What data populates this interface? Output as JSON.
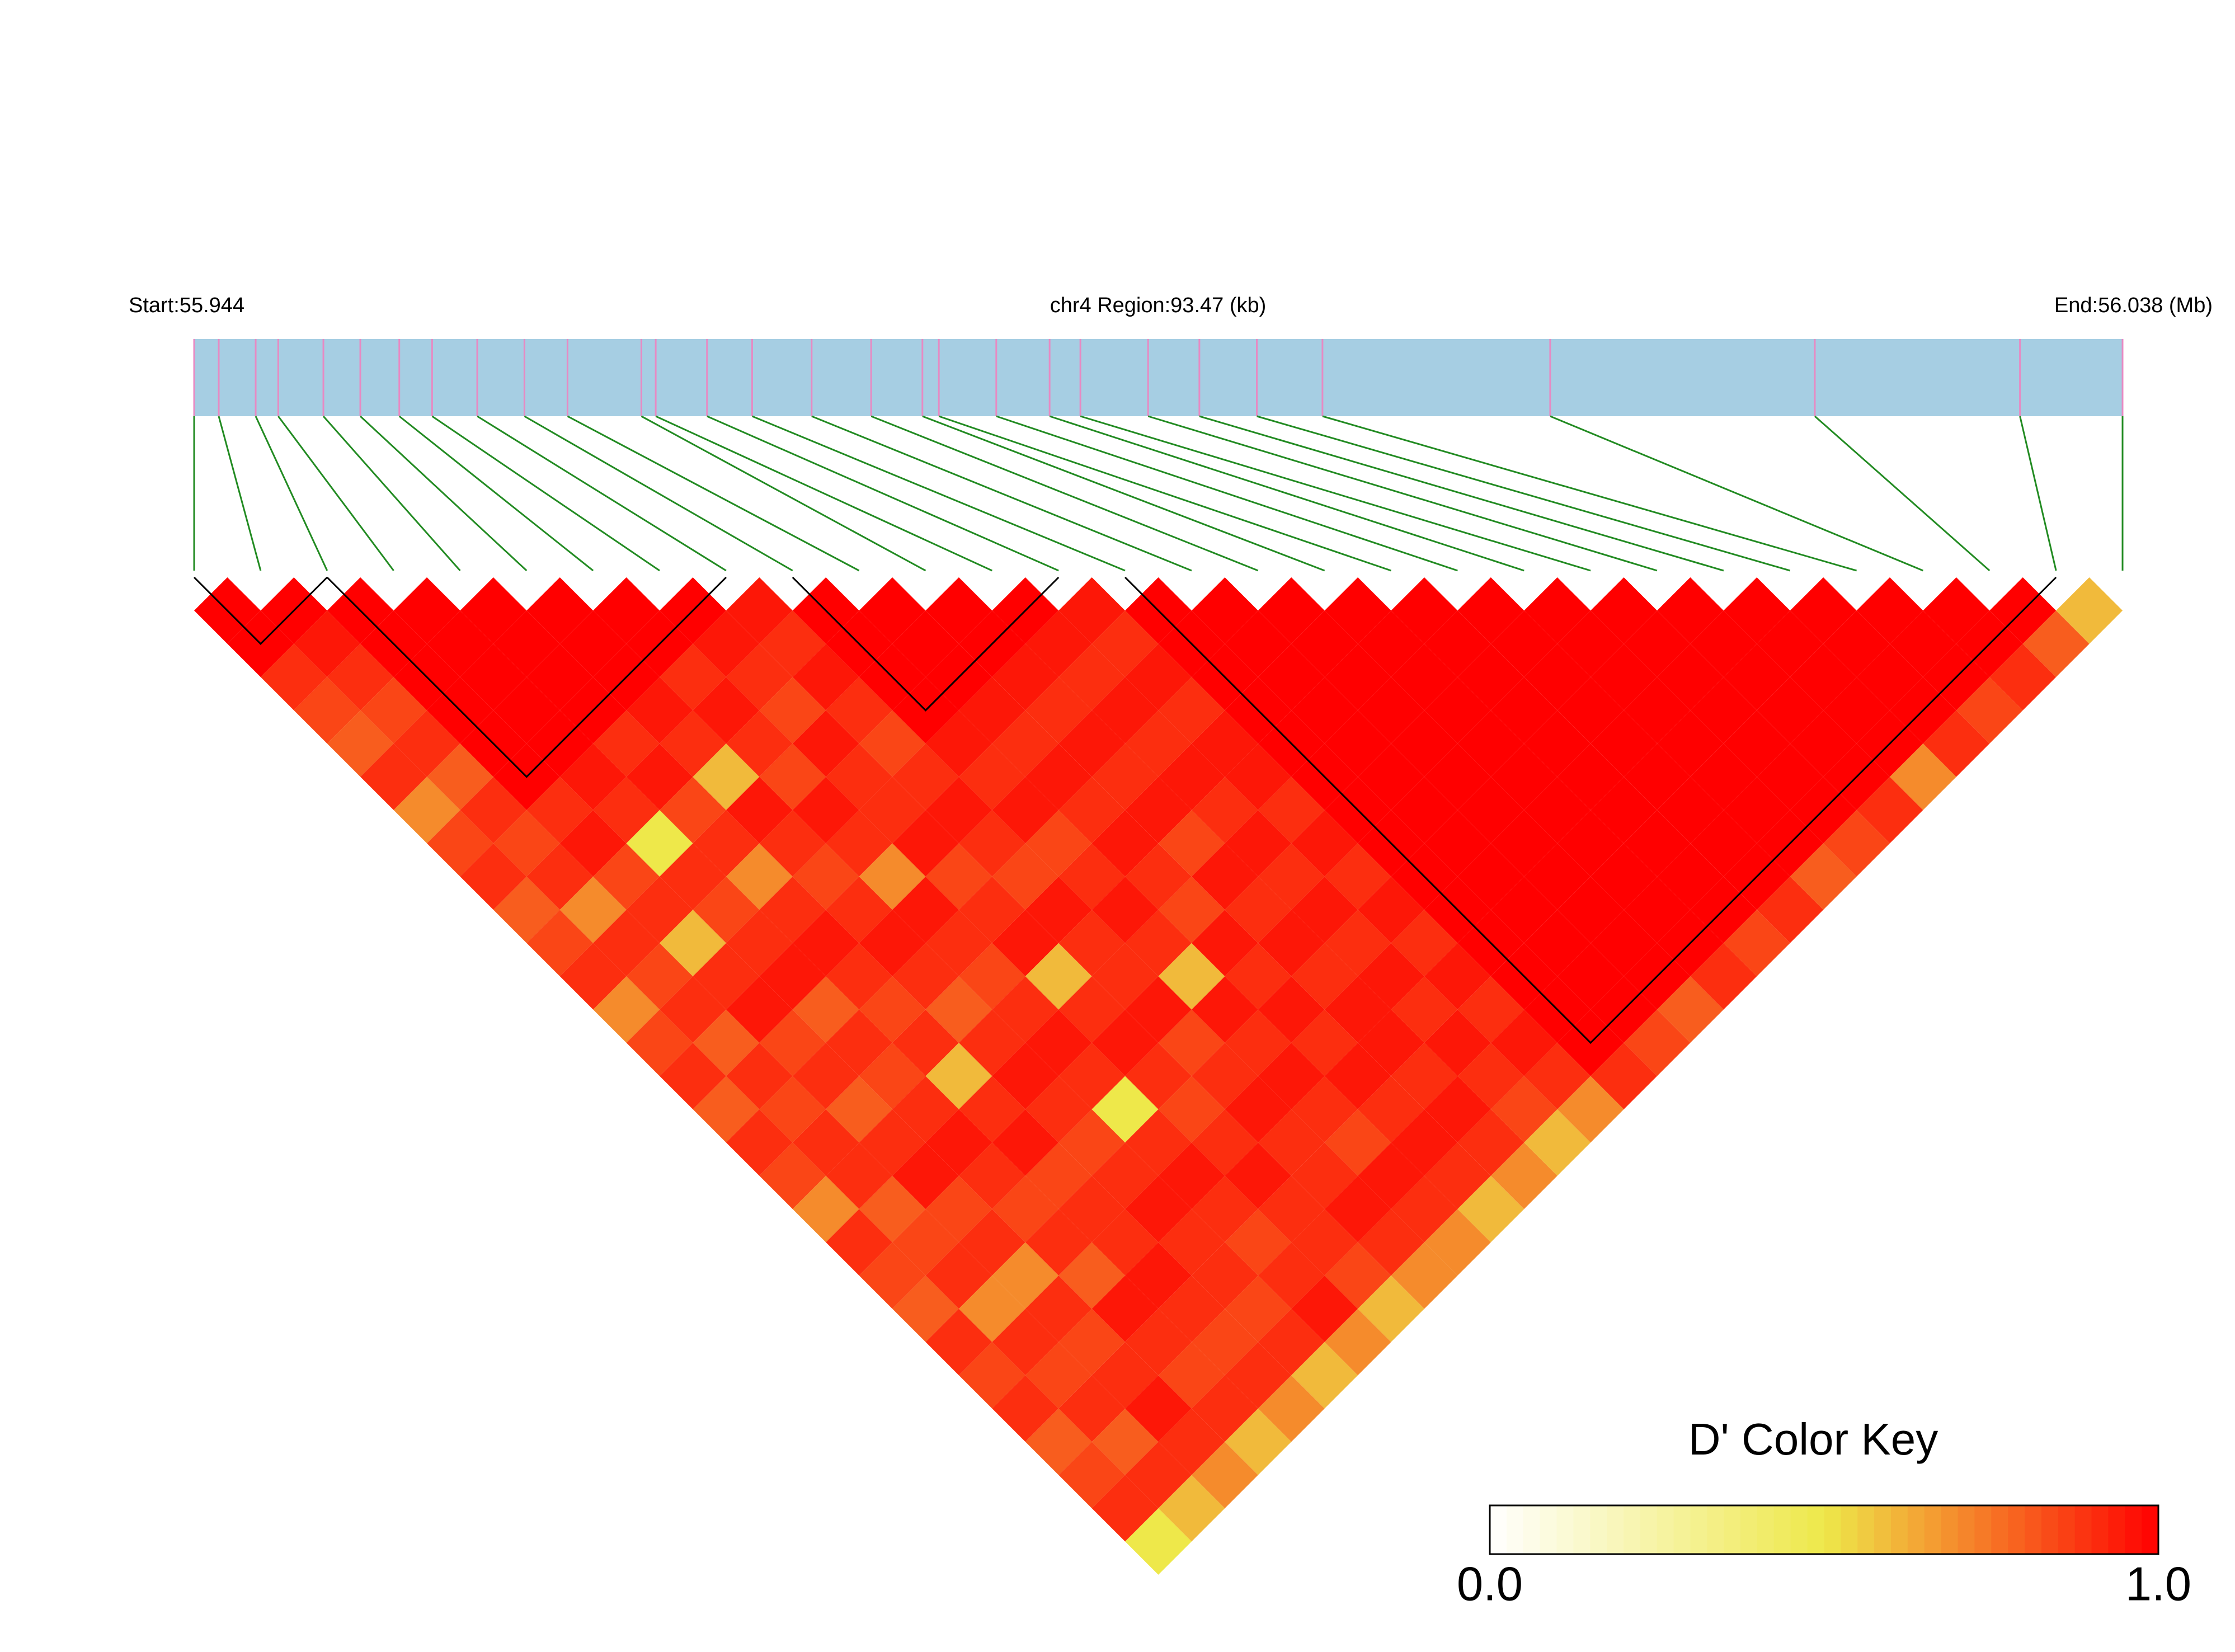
{
  "chart_data": {
    "type": "heatmap",
    "title": "chr4 Region:93.47 (kb)",
    "start_label": "Start:55.944",
    "end_label": "End:56.038 (Mb)",
    "xlim": [
      55.944,
      56.038
    ],
    "positions": [
      55.944,
      55.9452,
      55.947,
      55.9481,
      55.9503,
      55.9521,
      55.954,
      55.9556,
      55.9578,
      55.9601,
      55.9622,
      55.9658,
      55.9665,
      55.969,
      55.9712,
      55.9741,
      55.977,
      55.9795,
      55.9803,
      55.9831,
      55.9857,
      55.9872,
      55.9905,
      55.993,
      55.9958,
      55.999,
      56.0101,
      56.023,
      56.033,
      56.038
    ],
    "ld": [
      [
        1,
        1,
        0.9,
        0.85,
        0.8,
        0.9,
        0.7,
        0.85,
        0.9,
        0.8,
        0.85,
        0.9,
        0.7,
        0.85,
        0.9,
        0.8,
        0.9,
        0.85,
        0.7,
        0.9,
        0.85,
        0.8,
        0.9,
        0.85,
        0.9,
        0.8,
        0.85,
        0.9,
        0.5
      ],
      [
        1,
        0.95,
        0.9,
        0.85,
        0.9,
        0.8,
        0.9,
        0.85,
        0.9,
        0.7,
        0.9,
        0.85,
        0.9,
        0.8,
        0.9,
        0.85,
        0.9,
        0.9,
        0.8,
        0.85,
        0.9,
        0.7,
        0.9,
        0.85,
        0.9,
        0.8,
        0.9,
        0.6
      ],
      [
        1,
        1,
        1,
        1,
        1,
        1,
        0.9,
        0.95,
        0.85,
        0.9,
        0.6,
        0.9,
        0.95,
        0.85,
        0.9,
        0.8,
        0.9,
        0.95,
        0.85,
        0.9,
        0.7,
        0.9,
        0.85,
        0.9,
        0.95,
        0.9,
        0.7
      ],
      [
        1,
        1,
        1,
        1,
        1,
        0.95,
        0.9,
        0.5,
        0.9,
        0.85,
        0.9,
        0.95,
        0.8,
        0.9,
        0.85,
        0.9,
        0.95,
        0.9,
        0.85,
        0.9,
        0.8,
        0.95,
        0.9,
        0.85,
        0.9,
        0.6
      ],
      [
        1,
        1,
        1,
        1,
        0.9,
        0.95,
        0.85,
        0.9,
        0.7,
        0.9,
        0.95,
        0.9,
        0.85,
        0.9,
        0.6,
        0.9,
        0.95,
        0.85,
        0.9,
        0.9,
        0.95,
        0.9,
        0.85,
        0.9,
        0.7
      ],
      [
        1,
        1,
        1,
        0.95,
        0.9,
        0.6,
        0.95,
        0.9,
        0.85,
        0.9,
        0.95,
        0.9,
        0.8,
        0.9,
        0.95,
        0.9,
        0.85,
        0.9,
        0.95,
        0.9,
        0.9,
        0.85,
        0.9,
        0.6
      ],
      [
        1,
        1,
        0.9,
        0.95,
        0.9,
        0.85,
        0.95,
        0.9,
        0.7,
        0.95,
        0.9,
        0.85,
        0.9,
        0.95,
        0.9,
        0.5,
        0.9,
        0.95,
        0.9,
        0.85,
        0.9,
        0.95,
        0.7
      ],
      [
        1,
        0.95,
        0.9,
        0.85,
        0.95,
        0.9,
        0.9,
        0.95,
        0.85,
        0.9,
        0.95,
        0.6,
        0.9,
        0.95,
        0.9,
        0.85,
        0.9,
        0.95,
        0.9,
        0.9,
        0.85,
        0.6
      ],
      [
        0.95,
        0.9,
        0.95,
        0.9,
        0.85,
        0.9,
        0.95,
        0.9,
        0.85,
        0.95,
        0.9,
        0.9,
        0.95,
        0.85,
        0.9,
        0.95,
        0.9,
        0.9,
        0.95,
        0.9,
        0.7
      ],
      [
        1,
        1,
        1,
        1,
        0.95,
        0.9,
        0.95,
        0.85,
        0.9,
        0.95,
        0.9,
        0.6,
        0.95,
        0.9,
        0.95,
        0.9,
        0.85,
        0.95,
        0.9,
        0.7
      ],
      [
        1,
        1,
        1,
        0.95,
        0.9,
        0.95,
        0.9,
        0.95,
        0.9,
        0.85,
        0.95,
        0.9,
        0.95,
        0.9,
        0.95,
        0.9,
        0.95,
        0.9,
        0.6
      ],
      [
        1,
        1,
        0.95,
        0.9,
        0.95,
        0.9,
        0.95,
        0.85,
        0.95,
        0.9,
        0.95,
        0.9,
        0.95,
        0.95,
        0.9,
        0.95,
        0.9,
        0.7
      ],
      [
        1,
        0.95,
        0.9,
        0.95,
        0.9,
        0.95,
        0.9,
        0.95,
        0.9,
        0.95,
        0.9,
        0.95,
        0.9,
        0.95,
        0.9,
        0.85,
        0.6
      ],
      [
        0.95,
        0.9,
        0.95,
        0.9,
        0.95,
        0.95,
        0.9,
        0.95,
        0.9,
        0.95,
        0.9,
        0.95,
        0.9,
        0.95,
        0.9,
        0.7
      ],
      [
        1,
        1,
        1,
        1,
        1,
        1,
        1,
        1,
        1,
        1,
        1,
        1,
        1,
        1,
        0.9
      ],
      [
        1,
        1,
        1,
        1,
        1,
        1,
        1,
        1,
        1,
        1,
        1,
        1,
        1,
        0.85
      ],
      [
        1,
        1,
        1,
        1,
        1,
        1,
        1,
        1,
        1,
        1,
        1,
        1,
        0.8
      ],
      [
        1,
        1,
        1,
        1,
        1,
        1,
        1,
        1,
        1,
        1,
        1,
        0.9
      ],
      [
        1,
        1,
        1,
        1,
        1,
        1,
        1,
        1,
        1,
        1,
        0.85
      ],
      [
        1,
        1,
        1,
        1,
        1,
        1,
        1,
        1,
        1,
        0.9
      ],
      [
        1,
        1,
        1,
        1,
        1,
        1,
        1,
        1,
        0.8
      ],
      [
        1,
        1,
        1,
        1,
        1,
        1,
        1,
        0.85
      ],
      [
        1,
        1,
        1,
        1,
        1,
        1,
        0.9
      ],
      [
        1,
        1,
        1,
        1,
        1,
        0.7
      ],
      [
        1,
        1,
        1,
        1,
        0.9
      ],
      [
        1,
        1,
        1,
        0.85
      ],
      [
        1,
        1,
        0.9
      ],
      [
        1,
        0.8
      ],
      [
        0.6
      ]
    ],
    "blocks": [
      [
        0,
        2
      ],
      [
        2,
        8
      ],
      [
        9,
        13
      ],
      [
        14,
        28
      ]
    ],
    "bar_color": "#a6cee3",
    "snp_line_color": "#e78ac3",
    "link_color": "#228b22",
    "color_scale": [
      "#ffffff",
      "#eee84a",
      "#ff0000"
    ],
    "key_title": "D' Color Key",
    "key_ticks": [
      {
        "value": 0,
        "label": "0.0"
      },
      {
        "value": 1,
        "label": "1.0"
      }
    ]
  }
}
